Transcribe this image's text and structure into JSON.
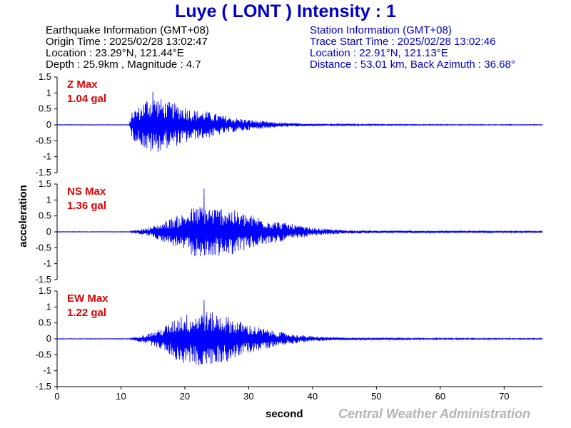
{
  "header": {
    "title": "Luye ( LONT ) Intensity : 1"
  },
  "earthquake_info": {
    "heading": "Earthquake Information  (GMT+08)",
    "origin_time": "Origin Time : 2025/02/28 13:02:47",
    "location": "Location : 23.29°N, 121.44°E",
    "depth_magnitude": "Depth : 25.9km , Magnitude : 4.7"
  },
  "station_info": {
    "heading": "Station Information  (GMT+08)",
    "trace_start": "Trace Start Time : 2025/02/28 13:02:46",
    "location": "Location : 22.91°N, 121.13°E",
    "distance": "Distance : 53.01 km, Back Azimuth : 36.68°"
  },
  "credit": "Central Weather Administration",
  "colors": {
    "trace": "#0000ff",
    "title": "#0000cc",
    "max_label": "#e00000",
    "credit": "#b4b4b4"
  },
  "chart_data": {
    "type": "line",
    "xlabel": "second",
    "ylabel": "acceleration",
    "xlim": [
      0,
      76
    ],
    "x_ticks": [
      0,
      10,
      20,
      30,
      40,
      50,
      60,
      70
    ],
    "y_ticks": [
      1.5,
      1,
      0.5,
      0,
      -0.5,
      -1,
      -1.5
    ],
    "y_tick_labels": [
      "1.5",
      "1",
      "0.5",
      "0",
      "-0.5",
      "-1",
      "-1.5"
    ],
    "ylim": [
      -1.5,
      1.5
    ],
    "grid": false,
    "series": [
      {
        "name": "Z Max",
        "max_label": "Z Max",
        "max_value": "1.04 gal",
        "peak": 1.04,
        "envelope": [
          [
            0,
            0.01
          ],
          [
            11.3,
            0.01
          ],
          [
            11.6,
            0.35
          ],
          [
            12,
            0.5
          ],
          [
            13,
            0.6
          ],
          [
            14,
            0.85
          ],
          [
            15,
            0.9
          ],
          [
            16,
            0.85
          ],
          [
            17,
            0.75
          ],
          [
            18,
            0.7
          ],
          [
            19,
            0.65
          ],
          [
            20,
            0.6
          ],
          [
            21,
            0.5
          ],
          [
            22,
            0.45
          ],
          [
            23,
            0.45
          ],
          [
            24,
            0.4
          ],
          [
            25,
            0.35
          ],
          [
            26,
            0.3
          ],
          [
            28,
            0.22
          ],
          [
            30,
            0.17
          ],
          [
            32,
            0.12
          ],
          [
            35,
            0.07
          ],
          [
            38,
            0.05
          ],
          [
            42,
            0.03
          ],
          [
            50,
            0.02
          ],
          [
            60,
            0.015
          ],
          [
            76,
            0.012
          ]
        ]
      },
      {
        "name": "NS Max",
        "max_label": "NS Max",
        "max_value": "1.36 gal",
        "peak": 1.36,
        "envelope": [
          [
            0,
            0.01
          ],
          [
            11.3,
            0.01
          ],
          [
            12,
            0.05
          ],
          [
            14,
            0.12
          ],
          [
            16,
            0.25
          ],
          [
            18,
            0.45
          ],
          [
            20,
            0.6
          ],
          [
            21,
            0.75
          ],
          [
            22,
            0.8
          ],
          [
            23,
            0.85
          ],
          [
            24,
            0.8
          ],
          [
            25,
            0.75
          ],
          [
            26,
            0.8
          ],
          [
            27,
            0.75
          ],
          [
            28,
            0.65
          ],
          [
            30,
            0.55
          ],
          [
            32,
            0.45
          ],
          [
            34,
            0.35
          ],
          [
            36,
            0.28
          ],
          [
            38,
            0.2
          ],
          [
            40,
            0.12
          ],
          [
            45,
            0.06
          ],
          [
            50,
            0.04
          ],
          [
            60,
            0.03
          ],
          [
            76,
            0.02
          ]
        ]
      },
      {
        "name": "EW Max",
        "max_label": "EW Max",
        "max_value": "1.22 gal",
        "peak": 1.22,
        "envelope": [
          [
            0,
            0.01
          ],
          [
            11.3,
            0.01
          ],
          [
            12,
            0.05
          ],
          [
            14,
            0.15
          ],
          [
            16,
            0.3
          ],
          [
            18,
            0.55
          ],
          [
            19,
            0.75
          ],
          [
            20,
            0.8
          ],
          [
            21,
            0.75
          ],
          [
            22,
            0.85
          ],
          [
            23,
            0.9
          ],
          [
            24,
            0.85
          ],
          [
            25,
            0.8
          ],
          [
            26,
            0.75
          ],
          [
            27,
            0.7
          ],
          [
            28,
            0.6
          ],
          [
            30,
            0.45
          ],
          [
            32,
            0.35
          ],
          [
            34,
            0.25
          ],
          [
            36,
            0.18
          ],
          [
            38,
            0.12
          ],
          [
            40,
            0.08
          ],
          [
            45,
            0.04
          ],
          [
            50,
            0.03
          ],
          [
            60,
            0.02
          ],
          [
            76,
            0.015
          ]
        ]
      }
    ]
  }
}
